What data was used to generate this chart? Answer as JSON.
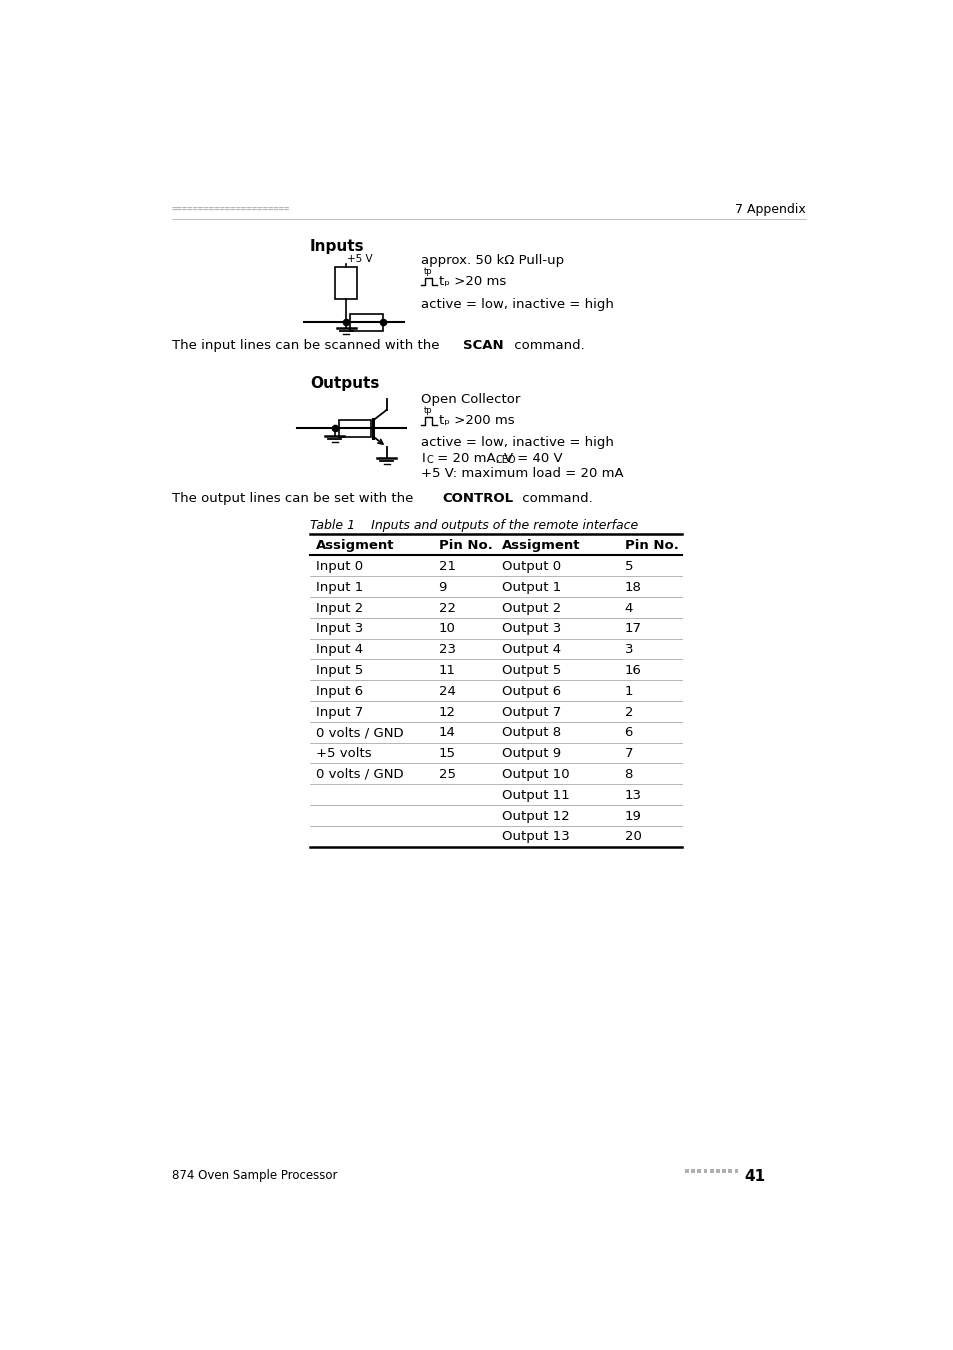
{
  "page_header_dots": "======================",
  "page_header_right": "7 Appendix",
  "section1_title": "Inputs",
  "section1_text1": "approx. 50 kΩ Pull-up",
  "section1_text3": "active = low, inactive = high",
  "scan_prefix": "The input lines can be scanned with the ",
  "scan_bold": "SCAN",
  "scan_suffix": " command.",
  "section2_title": "Outputs",
  "out_text1": "Open Collector",
  "out_text3": "active = low, inactive = high",
  "out_text5": "+5 V: maximum load = 20 mA",
  "ctrl_prefix": "The output lines can be set with the ",
  "ctrl_bold": "CONTROL",
  "ctrl_suffix": " command.",
  "table_caption": "Table 1    Inputs and outputs of the remote interface",
  "table_headers": [
    "Assigment",
    "Pin No.",
    "Assigment",
    "Pin No."
  ],
  "table_rows": [
    [
      "Input 0",
      "21",
      "Output 0",
      "5"
    ],
    [
      "Input 1",
      "9",
      "Output 1",
      "18"
    ],
    [
      "Input 2",
      "22",
      "Output 2",
      "4"
    ],
    [
      "Input 3",
      "10",
      "Output 3",
      "17"
    ],
    [
      "Input 4",
      "23",
      "Output 4",
      "3"
    ],
    [
      "Input 5",
      "11",
      "Output 5",
      "16"
    ],
    [
      "Input 6",
      "24",
      "Output 6",
      "1"
    ],
    [
      "Input 7",
      "12",
      "Output 7",
      "2"
    ],
    [
      "0 volts / GND",
      "14",
      "Output 8",
      "6"
    ],
    [
      "+5 volts",
      "15",
      "Output 9",
      "7"
    ],
    [
      "0 volts / GND",
      "25",
      "Output 10",
      "8"
    ],
    [
      "",
      "",
      "Output 11",
      "13"
    ],
    [
      "",
      "",
      "Output 12",
      "19"
    ],
    [
      "",
      "",
      "Output 13",
      "20"
    ]
  ],
  "footer_left": "874 Oven Sample Processor",
  "footer_right": "■■■■■■■■■ 41",
  "bg_color": "#ffffff",
  "text_color": "#000000",
  "dots_color": "#b0b0b0"
}
